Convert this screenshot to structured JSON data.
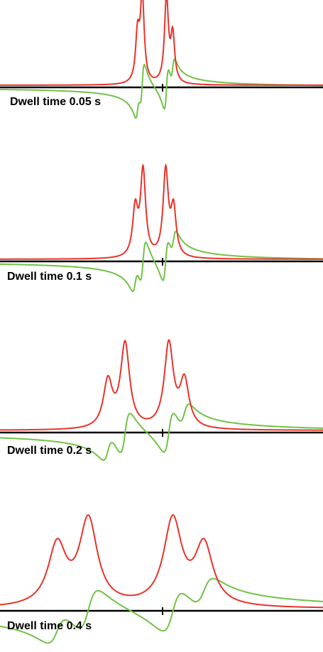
{
  "chart_data": [
    {
      "type": "line",
      "label": "Dwell time 0.05 s",
      "dwell_time_s": 0.05,
      "peak_positions": [
        -0.32,
        -0.26,
        0.05,
        0.13
      ],
      "peak_heights": [
        0.55,
        1.0,
        1.0,
        0.55
      ],
      "series": [
        {
          "name": "",
          "color": "#e8332a",
          "component": "absorption"
        },
        {
          "name": "",
          "color": "#72c245",
          "component": "dispersion"
        }
      ]
    },
    {
      "type": "line",
      "label": "Dwell time 0.1 s",
      "dwell_time_s": 0.1,
      "peak_positions": [
        -0.35,
        -0.25,
        0.04,
        0.14
      ],
      "peak_heights": [
        0.55,
        1.0,
        1.0,
        0.55
      ],
      "series": [
        {
          "name": "",
          "color": "#e8332a",
          "component": "absorption"
        },
        {
          "name": "",
          "color": "#72c245",
          "component": "dispersion"
        }
      ]
    },
    {
      "type": "line",
      "label": "Dwell time 0.2 s",
      "dwell_time_s": 0.2,
      "peak_positions": [
        -0.7,
        -0.48,
        0.08,
        0.28
      ],
      "peak_heights": [
        0.55,
        1.0,
        1.0,
        0.55
      ],
      "series": [
        {
          "name": "",
          "color": "#e8332a",
          "component": "absorption"
        },
        {
          "name": "",
          "color": "#72c245",
          "component": "dispersion"
        }
      ]
    },
    {
      "type": "line",
      "label": "Dwell time 0.4 s",
      "dwell_time_s": 0.4,
      "peak_positions": [
        -1.35,
        -0.95,
        0.13,
        0.53
      ],
      "peak_heights": [
        0.7,
        1.0,
        1.0,
        0.7
      ],
      "series": [
        {
          "name": "",
          "color": "#e8332a",
          "component": "absorption"
        },
        {
          "name": "",
          "color": "#72c245",
          "component": "dispersion"
        }
      ]
    }
  ],
  "colors": {
    "absorption": "#e8332a",
    "dispersion": "#72c245",
    "baseline": "#000000"
  }
}
